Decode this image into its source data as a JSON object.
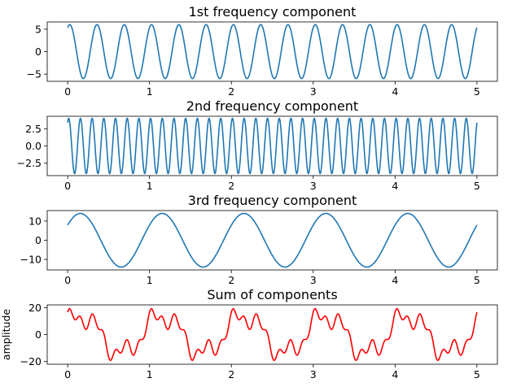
{
  "chart_data": [
    {
      "type": "line",
      "title": "1st frequency component",
      "xlabel": "",
      "ylabel": "",
      "xlim": [
        -0.25,
        5.25
      ],
      "ylim": [
        -6.6,
        6.6
      ],
      "xticks": [
        0,
        1,
        2,
        3,
        4,
        5
      ],
      "xtick_labels": [
        "0",
        "1",
        "2",
        "3",
        "4",
        "5"
      ],
      "yticks": [
        -5,
        0,
        5
      ],
      "ytick_labels": [
        "−5",
        "0",
        "5"
      ],
      "grid": false,
      "color": "#1f77b4",
      "series": [
        {
          "amplitude": 6,
          "frequency": 3,
          "phase": 1.1,
          "x_range": [
            0,
            5
          ]
        }
      ]
    },
    {
      "type": "line",
      "title": "2nd frequency component",
      "xlabel": "",
      "ylabel": "",
      "xlim": [
        -0.25,
        5.25
      ],
      "ylim": [
        -4.3,
        4.3
      ],
      "xticks": [
        0,
        1,
        2,
        3,
        4,
        5
      ],
      "xtick_labels": [
        "0",
        "1",
        "2",
        "3",
        "4",
        "5"
      ],
      "yticks": [
        -2.5,
        0,
        2.5
      ],
      "ytick_labels": [
        "−2.5",
        "0.0",
        "2.5"
      ],
      "grid": false,
      "color": "#1f77b4",
      "series": [
        {
          "amplitude": 4,
          "frequency": 7,
          "phase": 1.0,
          "x_range": [
            0,
            5
          ]
        }
      ]
    },
    {
      "type": "line",
      "title": "3rd frequency component",
      "xlabel": "",
      "ylabel": "",
      "xlim": [
        -0.25,
        5.25
      ],
      "ylim": [
        -15.5,
        15.5
      ],
      "xticks": [
        0,
        1,
        2,
        3,
        4,
        5
      ],
      "xtick_labels": [
        "0",
        "1",
        "2",
        "3",
        "4",
        "5"
      ],
      "yticks": [
        -10,
        0,
        10
      ],
      "ytick_labels": [
        "−10",
        "0",
        "10"
      ],
      "grid": false,
      "color": "#1f77b4",
      "series": [
        {
          "amplitude": 14,
          "frequency": 1,
          "phase": 0.6,
          "x_range": [
            0,
            5
          ]
        }
      ]
    },
    {
      "type": "line",
      "title": "Sum of components",
      "xlabel": "",
      "ylabel": "amplitude",
      "xlim": [
        -0.25,
        5.25
      ],
      "ylim": [
        -22,
        22
      ],
      "xticks": [
        0,
        1,
        2,
        3,
        4,
        5
      ],
      "xtick_labels": [
        "0",
        "1",
        "2",
        "3",
        "4",
        "5"
      ],
      "yticks": [
        -20,
        0,
        20
      ],
      "ytick_labels": [
        "−20",
        "0",
        "20"
      ],
      "grid": false,
      "color": "#ff0000",
      "series": [
        {
          "sum_of_components": [
            0,
            1,
            2
          ],
          "x_range": [
            0,
            5
          ]
        }
      ]
    }
  ]
}
